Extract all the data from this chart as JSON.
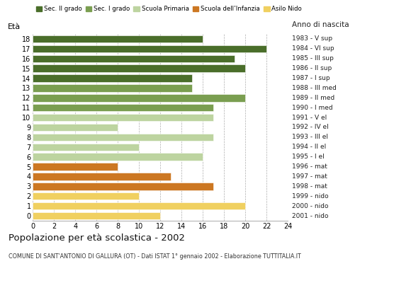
{
  "ages": [
    18,
    17,
    16,
    15,
    14,
    13,
    12,
    11,
    10,
    9,
    8,
    7,
    6,
    5,
    4,
    3,
    2,
    1,
    0
  ],
  "values": [
    16,
    22,
    19,
    20,
    15,
    15,
    20,
    17,
    17,
    8,
    17,
    10,
    16,
    8,
    13,
    17,
    10,
    20,
    12
  ],
  "categories": [
    "Sec. II grado",
    "Sec. I grado",
    "Scuola Primaria",
    "Scuola dell’Infanzia",
    "Asilo Nido"
  ],
  "right_labels": [
    "1983 - V sup",
    "1984 - VI sup",
    "1985 - III sup",
    "1986 - II sup",
    "1987 - I sup",
    "1988 - III med",
    "1989 - II med",
    "1990 - I med",
    "1991 - V el",
    "1992 - IV el",
    "1993 - III el",
    "1994 - II el",
    "1995 - I el",
    "1996 - mat",
    "1997 - mat",
    "1998 - mat",
    "1999 - nido",
    "2000 - nido",
    "2001 - nido"
  ],
  "bar_colors_by_age": {
    "18": "#4a6e2a",
    "17": "#4a6e2a",
    "16": "#4a6e2a",
    "15": "#4a6e2a",
    "14": "#4a6e2a",
    "13": "#7a9e50",
    "12": "#7a9e50",
    "11": "#7a9e50",
    "10": "#bdd4a0",
    "9": "#bdd4a0",
    "8": "#bdd4a0",
    "7": "#bdd4a0",
    "6": "#bdd4a0",
    "5": "#cc7722",
    "4": "#cc7722",
    "3": "#cc7722",
    "2": "#f0d060",
    "1": "#f0d060",
    "0": "#f0d060"
  },
  "legend_colors": [
    "#4a6e2a",
    "#7a9e50",
    "#bdd4a0",
    "#cc7722",
    "#f0d060"
  ],
  "title": "Popolazione per età scolastica - 2002",
  "subtitle": "COMUNE DI SANT'ANTONIO DI GALLURA (OT) - Dati ISTAT 1° gennaio 2002 - Elaborazione TUTTITALIA.IT",
  "eta_label": "Età",
  "anno_label": "Anno di nascita",
  "xlim": [
    0,
    24
  ],
  "xticks": [
    0,
    2,
    4,
    6,
    8,
    10,
    12,
    14,
    16,
    18,
    20,
    22,
    24
  ],
  "background_color": "#ffffff"
}
